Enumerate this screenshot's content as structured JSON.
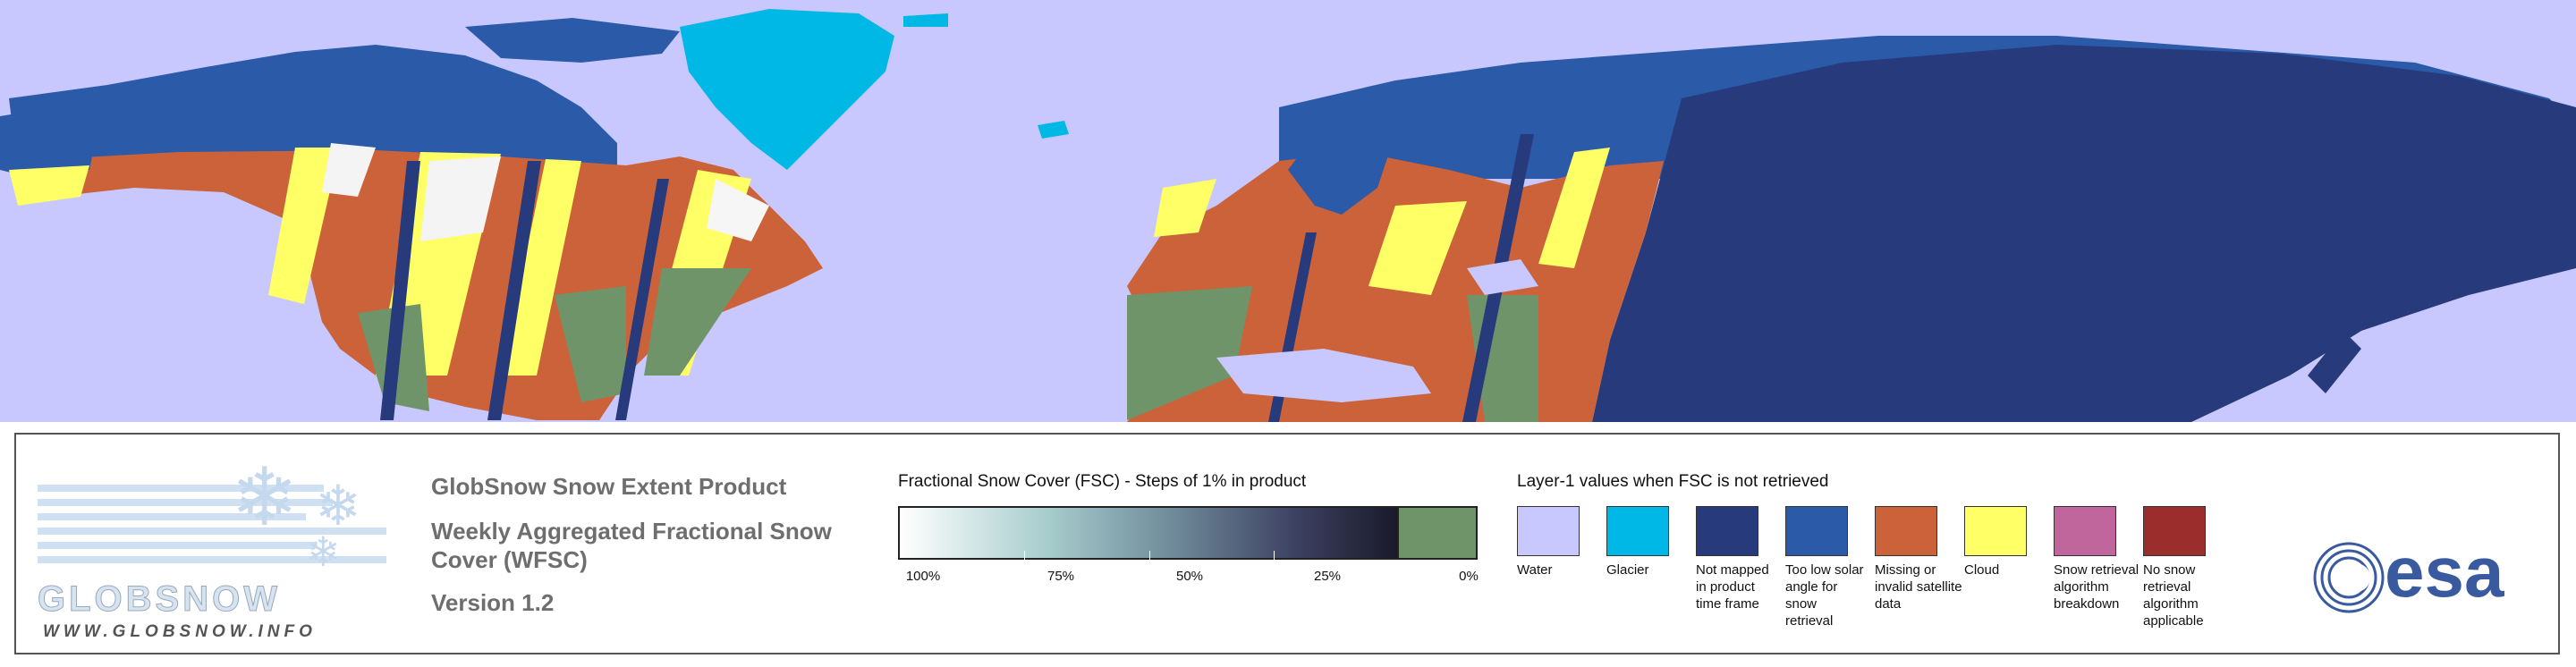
{
  "colors": {
    "water": "#c8c8ff",
    "glacier": "#00b8e6",
    "not_mapped": "#263a7c",
    "low_sun": "#2a5aa8",
    "missing": "#cc6239",
    "cloud": "#ffff66",
    "breakdown": "#c0669c",
    "no_retrieval": "#9b2d2d",
    "fsc_zero": "#6f9469",
    "land_white": "#ffffff"
  },
  "logo": {
    "brand": "GLOBSNOW",
    "url": "WWW.GLOBSNOW.INFO"
  },
  "product": {
    "name": "GlobSnow Snow Extent Product",
    "subtitle": "Weekly Aggregated Fractional Snow Cover (WFSC)",
    "version": "Version 1.2"
  },
  "fsc_legend": {
    "title": "Fractional Snow Cover (FSC) - Steps of 1% in product",
    "ticks": [
      "100%",
      "75%",
      "50%",
      "25%",
      "0%"
    ]
  },
  "layer1_legend": {
    "title": "Layer-1 values when FSC is not retrieved",
    "items": [
      {
        "label": "Water",
        "color": "#c8c8ff"
      },
      {
        "label": "Glacier",
        "color": "#00b8e6"
      },
      {
        "label": "Not mapped in product time frame",
        "color": "#263a7c"
      },
      {
        "label": "Too low solar angle for snow retrieval",
        "color": "#2a5aa8"
      },
      {
        "label": "Missing or invalid satellite data",
        "color": "#cc6239"
      },
      {
        "label": "Cloud",
        "color": "#ffff66"
      },
      {
        "label": "Snow retrieval algorithm breakdown",
        "color": "#c0669c"
      },
      {
        "label": "No snow retrieval algorithm applicable",
        "color": "#9b2d2d"
      }
    ]
  },
  "esa_logo": {
    "text": "esa"
  }
}
